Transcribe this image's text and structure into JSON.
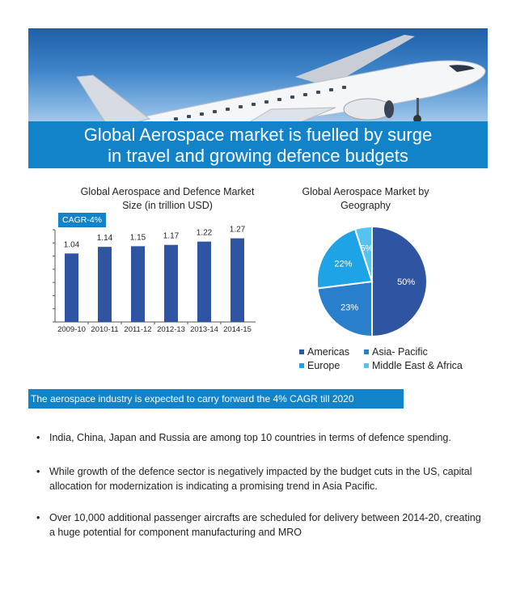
{
  "banner": {
    "line1": "Global Aerospace market is fuelled by surge",
    "line2": "in travel and growing defence budgets"
  },
  "bar_chart": {
    "title_line1": "Global Aerospace and Defence Market",
    "title_line2": "Size (in trillion USD)",
    "badge": "CAGR-4%"
  },
  "pie_chart": {
    "title_line1": "Global Aerospace Market by",
    "title_line2": "Geography"
  },
  "info_bar": "The aerospace industry is expected to carry forward the 4% CAGR till 2020",
  "bullets": [
    "India, China, Japan and Russia are among top 10 countries in terms of defence spending.",
    "While growth of the defence sector is negatively impacted by the budget cuts in the US, capital allocation for modernization is indicating a promising trend in Asia Pacific.",
    "Over 10,000 additional passenger aircrafts are scheduled for delivery between 2014-20, creating a huge potential for component manufacturing and MRO"
  ],
  "bullet_symbol": "•",
  "colors": {
    "banner_blue": "#1282c9",
    "bar_color": "#2e54a2",
    "americas": "#2e54a2",
    "asia_pacific": "#2a7fcd",
    "europe": "#1ea3e6",
    "middle_east_africa": "#56c2ef"
  },
  "icons": [
    "airplane-image"
  ],
  "chart_data": [
    {
      "type": "bar",
      "title": "Global Aerospace and Defence Market Size (in trillion USD)",
      "categories": [
        "2009-10",
        "2010-11",
        "2011-12",
        "2012-13",
        "2013-14",
        "2014-15"
      ],
      "values": [
        1.04,
        1.14,
        1.15,
        1.17,
        1.22,
        1.27
      ],
      "value_labels": [
        "1.04",
        "1.14",
        "1.15",
        "1.17",
        "1.22",
        "1.27"
      ],
      "annotation": "CAGR-4%",
      "ylim": [
        0,
        1.4
      ],
      "grid": false
    },
    {
      "type": "pie",
      "title": "Global Aerospace Market by Geography",
      "categories": [
        "Americas",
        "Asia- Pacific",
        "Europe",
        "Middle East & Africa"
      ],
      "values": [
        50,
        23,
        22,
        5
      ],
      "value_labels": [
        "50%",
        "23%",
        "22%",
        "5%"
      ],
      "legend": "bottom"
    }
  ]
}
